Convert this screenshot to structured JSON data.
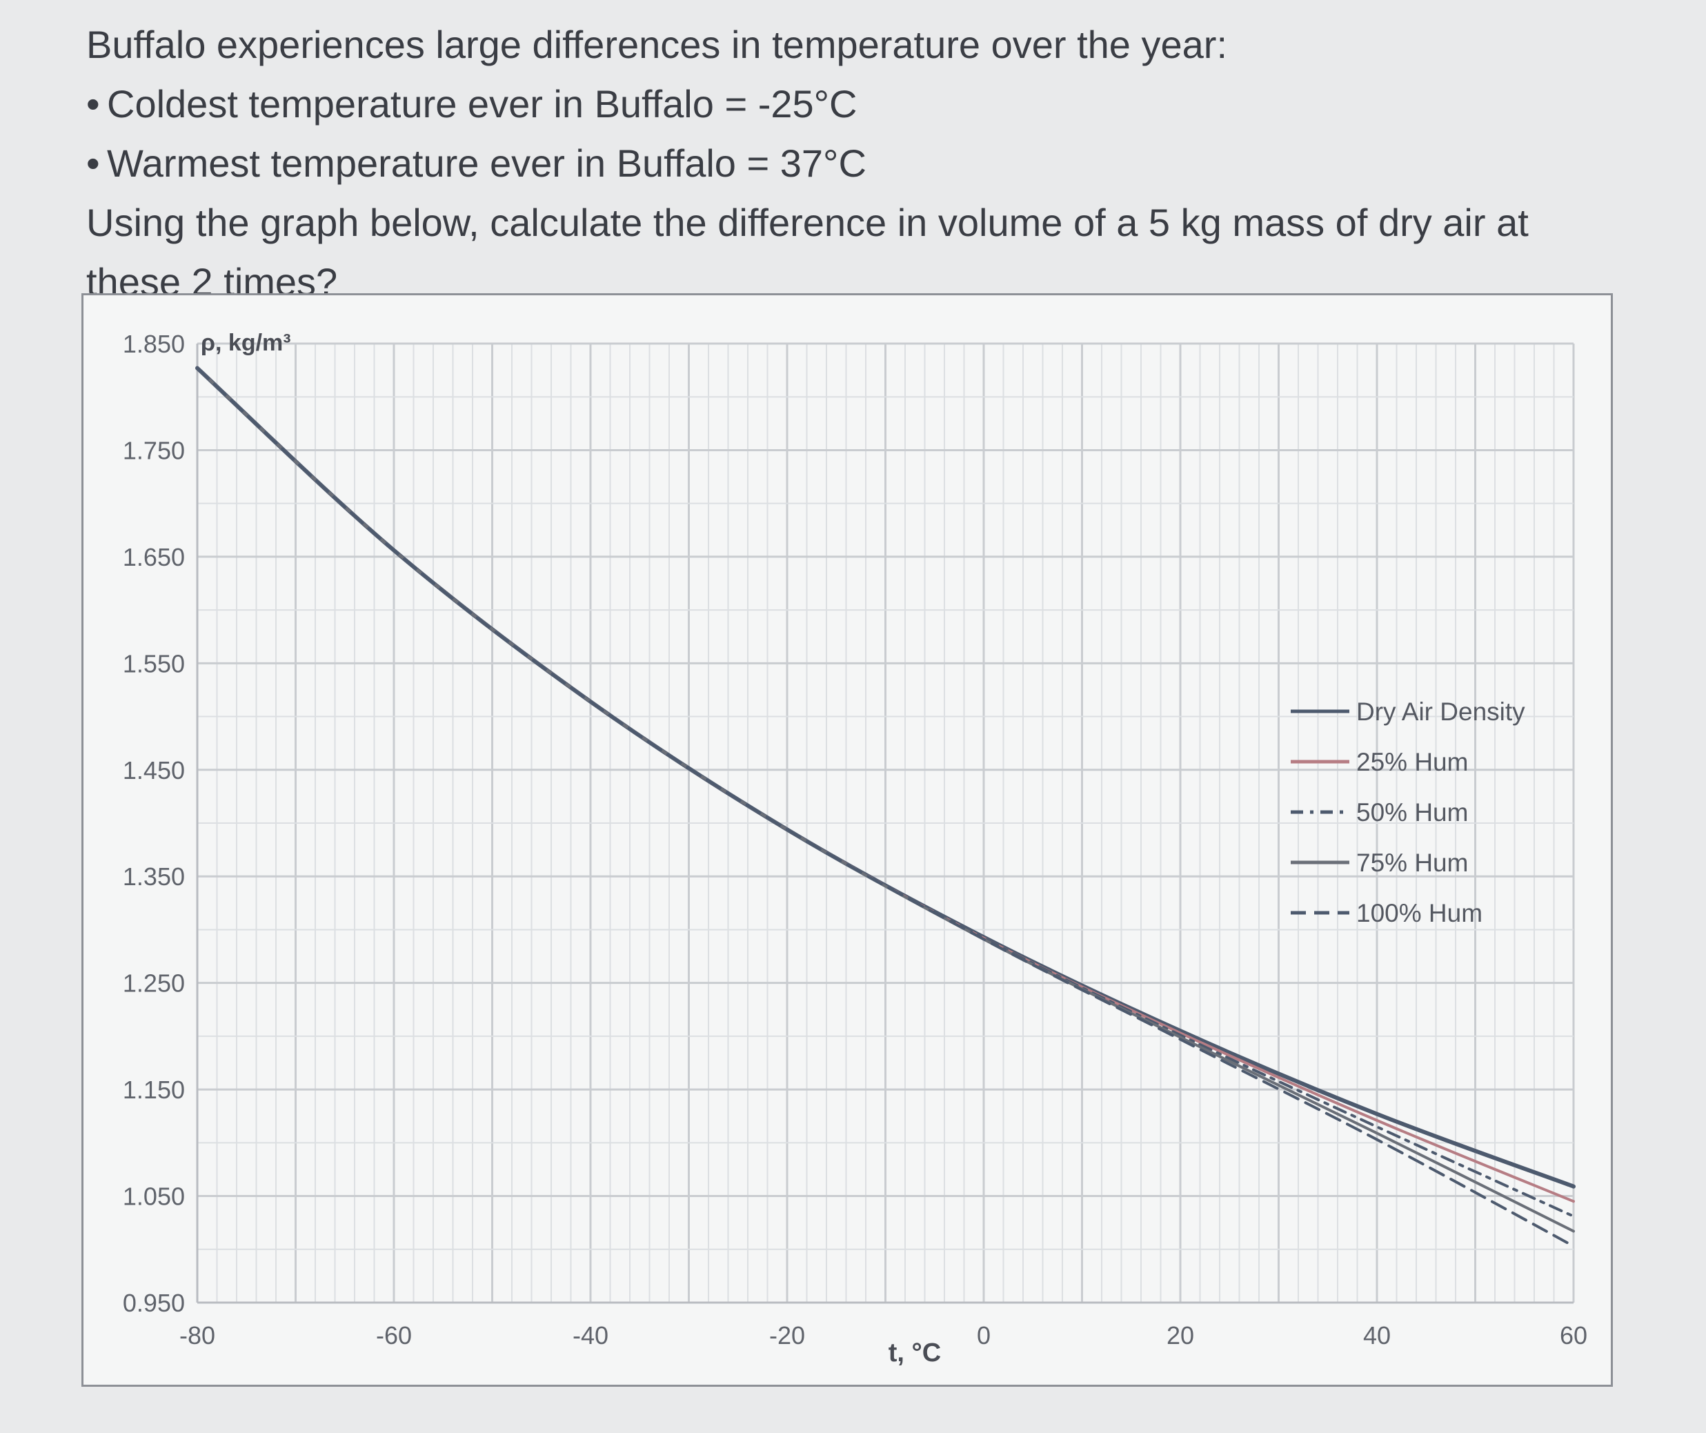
{
  "question": {
    "intro": "Buffalo experiences large differences in temperature over the year:",
    "bullet_glyph": "•",
    "bullets": [
      "Coldest temperature ever in Buffalo = -25°C",
      "Warmest temperature ever in Buffalo = 37°C"
    ],
    "prompt_line1": "Using the graph below, calculate the difference in volume of a 5 kg mass of dry air at",
    "prompt_line2": "these 2 times?"
  },
  "chart_data": {
    "type": "line",
    "title": "",
    "xlabel": "t, °C",
    "ylabel": "ρ, kg/m³",
    "xlim": [
      -80,
      60
    ],
    "ylim": [
      0.95,
      1.85
    ],
    "x_ticks": [
      "-80",
      "-60",
      "-40",
      "-20",
      "0",
      "20",
      "40",
      "60"
    ],
    "y_ticks": [
      "1.850",
      "1.750",
      "1.650",
      "1.550",
      "1.450",
      "1.350",
      "1.250",
      "1.150",
      "1.050",
      "0.950"
    ],
    "x_tick_values": [
      -80,
      -60,
      -40,
      -20,
      0,
      20,
      40,
      60
    ],
    "y_tick_values": [
      1.85,
      1.75,
      1.65,
      1.55,
      1.45,
      1.35,
      1.25,
      1.15,
      1.05,
      0.95
    ],
    "grid": true,
    "legend": "right",
    "series": [
      {
        "name": "Dry Air Density",
        "color": "#4d5a6e",
        "dash": "",
        "x": [
          -80,
          -60,
          -40,
          -20,
          0,
          20,
          40,
          60
        ],
        "y": [
          1.827,
          1.656,
          1.514,
          1.394,
          1.293,
          1.205,
          1.127,
          1.059
        ]
      },
      {
        "name": "25% Hum",
        "color": "#b67d84",
        "dash": "",
        "x": [
          -80,
          -60,
          -40,
          -20,
          0,
          20,
          40,
          60
        ],
        "y": [
          1.827,
          1.656,
          1.514,
          1.394,
          1.292,
          1.203,
          1.121,
          1.045
        ]
      },
      {
        "name": "50% Hum",
        "color": "#4d5a6e",
        "dash": "dashdot",
        "x": [
          -80,
          -60,
          -40,
          -20,
          0,
          20,
          40,
          60
        ],
        "y": [
          1.827,
          1.656,
          1.514,
          1.394,
          1.292,
          1.201,
          1.115,
          1.031
        ]
      },
      {
        "name": "75% Hum",
        "color": "#6a6f78",
        "dash": "",
        "x": [
          -80,
          -60,
          -40,
          -20,
          0,
          20,
          40,
          60
        ],
        "y": [
          1.827,
          1.656,
          1.514,
          1.394,
          1.291,
          1.199,
          1.109,
          1.017
        ]
      },
      {
        "name": "100% Hum",
        "color": "#4d5a6e",
        "dash": "dash",
        "x": [
          -80,
          -60,
          -40,
          -20,
          0,
          20,
          40,
          60
        ],
        "y": [
          1.827,
          1.656,
          1.514,
          1.394,
          1.291,
          1.197,
          1.103,
          1.003
        ]
      }
    ]
  }
}
